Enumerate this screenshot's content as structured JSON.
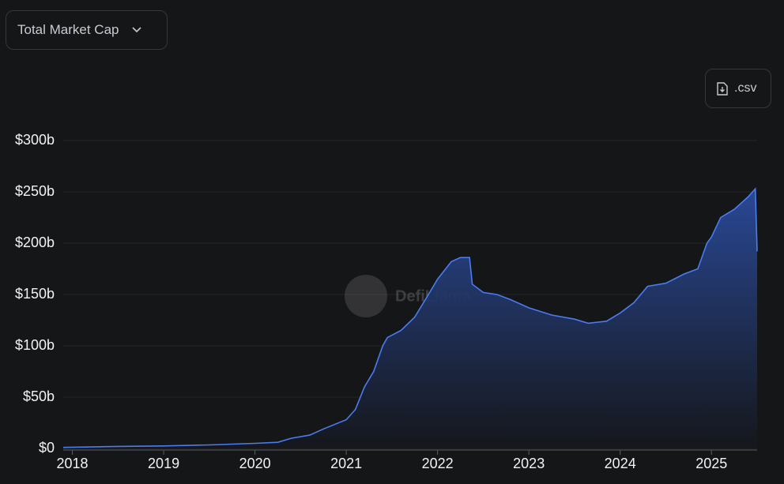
{
  "controls": {
    "metric": "Total Market Cap",
    "download": ".csv"
  },
  "watermark": "DefiLlama",
  "chart_data": {
    "type": "area",
    "x": [
      2017.9,
      2018.0,
      2018.5,
      2019.0,
      2019.5,
      2020.0,
      2020.25,
      2020.4,
      2020.6,
      2020.75,
      2021.0,
      2021.1,
      2021.2,
      2021.3,
      2021.4,
      2021.45,
      2021.6,
      2021.75,
      2021.9,
      2022.0,
      2022.15,
      2022.25,
      2022.35,
      2022.38,
      2022.5,
      2022.65,
      2022.8,
      2023.0,
      2023.25,
      2023.5,
      2023.65,
      2023.85,
      2024.0,
      2024.15,
      2024.3,
      2024.5,
      2024.7,
      2024.85,
      2024.95,
      2025.0,
      2025.1,
      2025.25,
      2025.4,
      2025.48,
      2025.5
    ],
    "values": [
      1,
      1.2,
      2,
      2.5,
      3.5,
      5,
      6,
      10,
      13,
      19,
      28,
      38,
      60,
      75,
      100,
      108,
      115,
      128,
      150,
      165,
      182,
      186,
      186,
      160,
      152,
      150,
      145,
      137,
      130,
      126,
      122,
      124,
      132,
      142,
      158,
      161,
      170,
      175,
      200,
      206,
      225,
      233,
      245,
      253,
      192
    ],
    "color": "#4a7cf0",
    "xlim": [
      2017.9,
      2025.5
    ],
    "xticks": [
      2018,
      2019,
      2020,
      2021,
      2022,
      2023,
      2024,
      2025
    ],
    "ylim": [
      0,
      300
    ],
    "yticks": [
      {
        "value": 0,
        "label": "$0"
      },
      {
        "value": 50,
        "label": "$50b"
      },
      {
        "value": 100,
        "label": "$100b"
      },
      {
        "value": 150,
        "label": "$150b"
      },
      {
        "value": 200,
        "label": "$200b"
      },
      {
        "value": 250,
        "label": "$250b"
      },
      {
        "value": 300,
        "label": "$300b"
      }
    ],
    "grid": true
  }
}
